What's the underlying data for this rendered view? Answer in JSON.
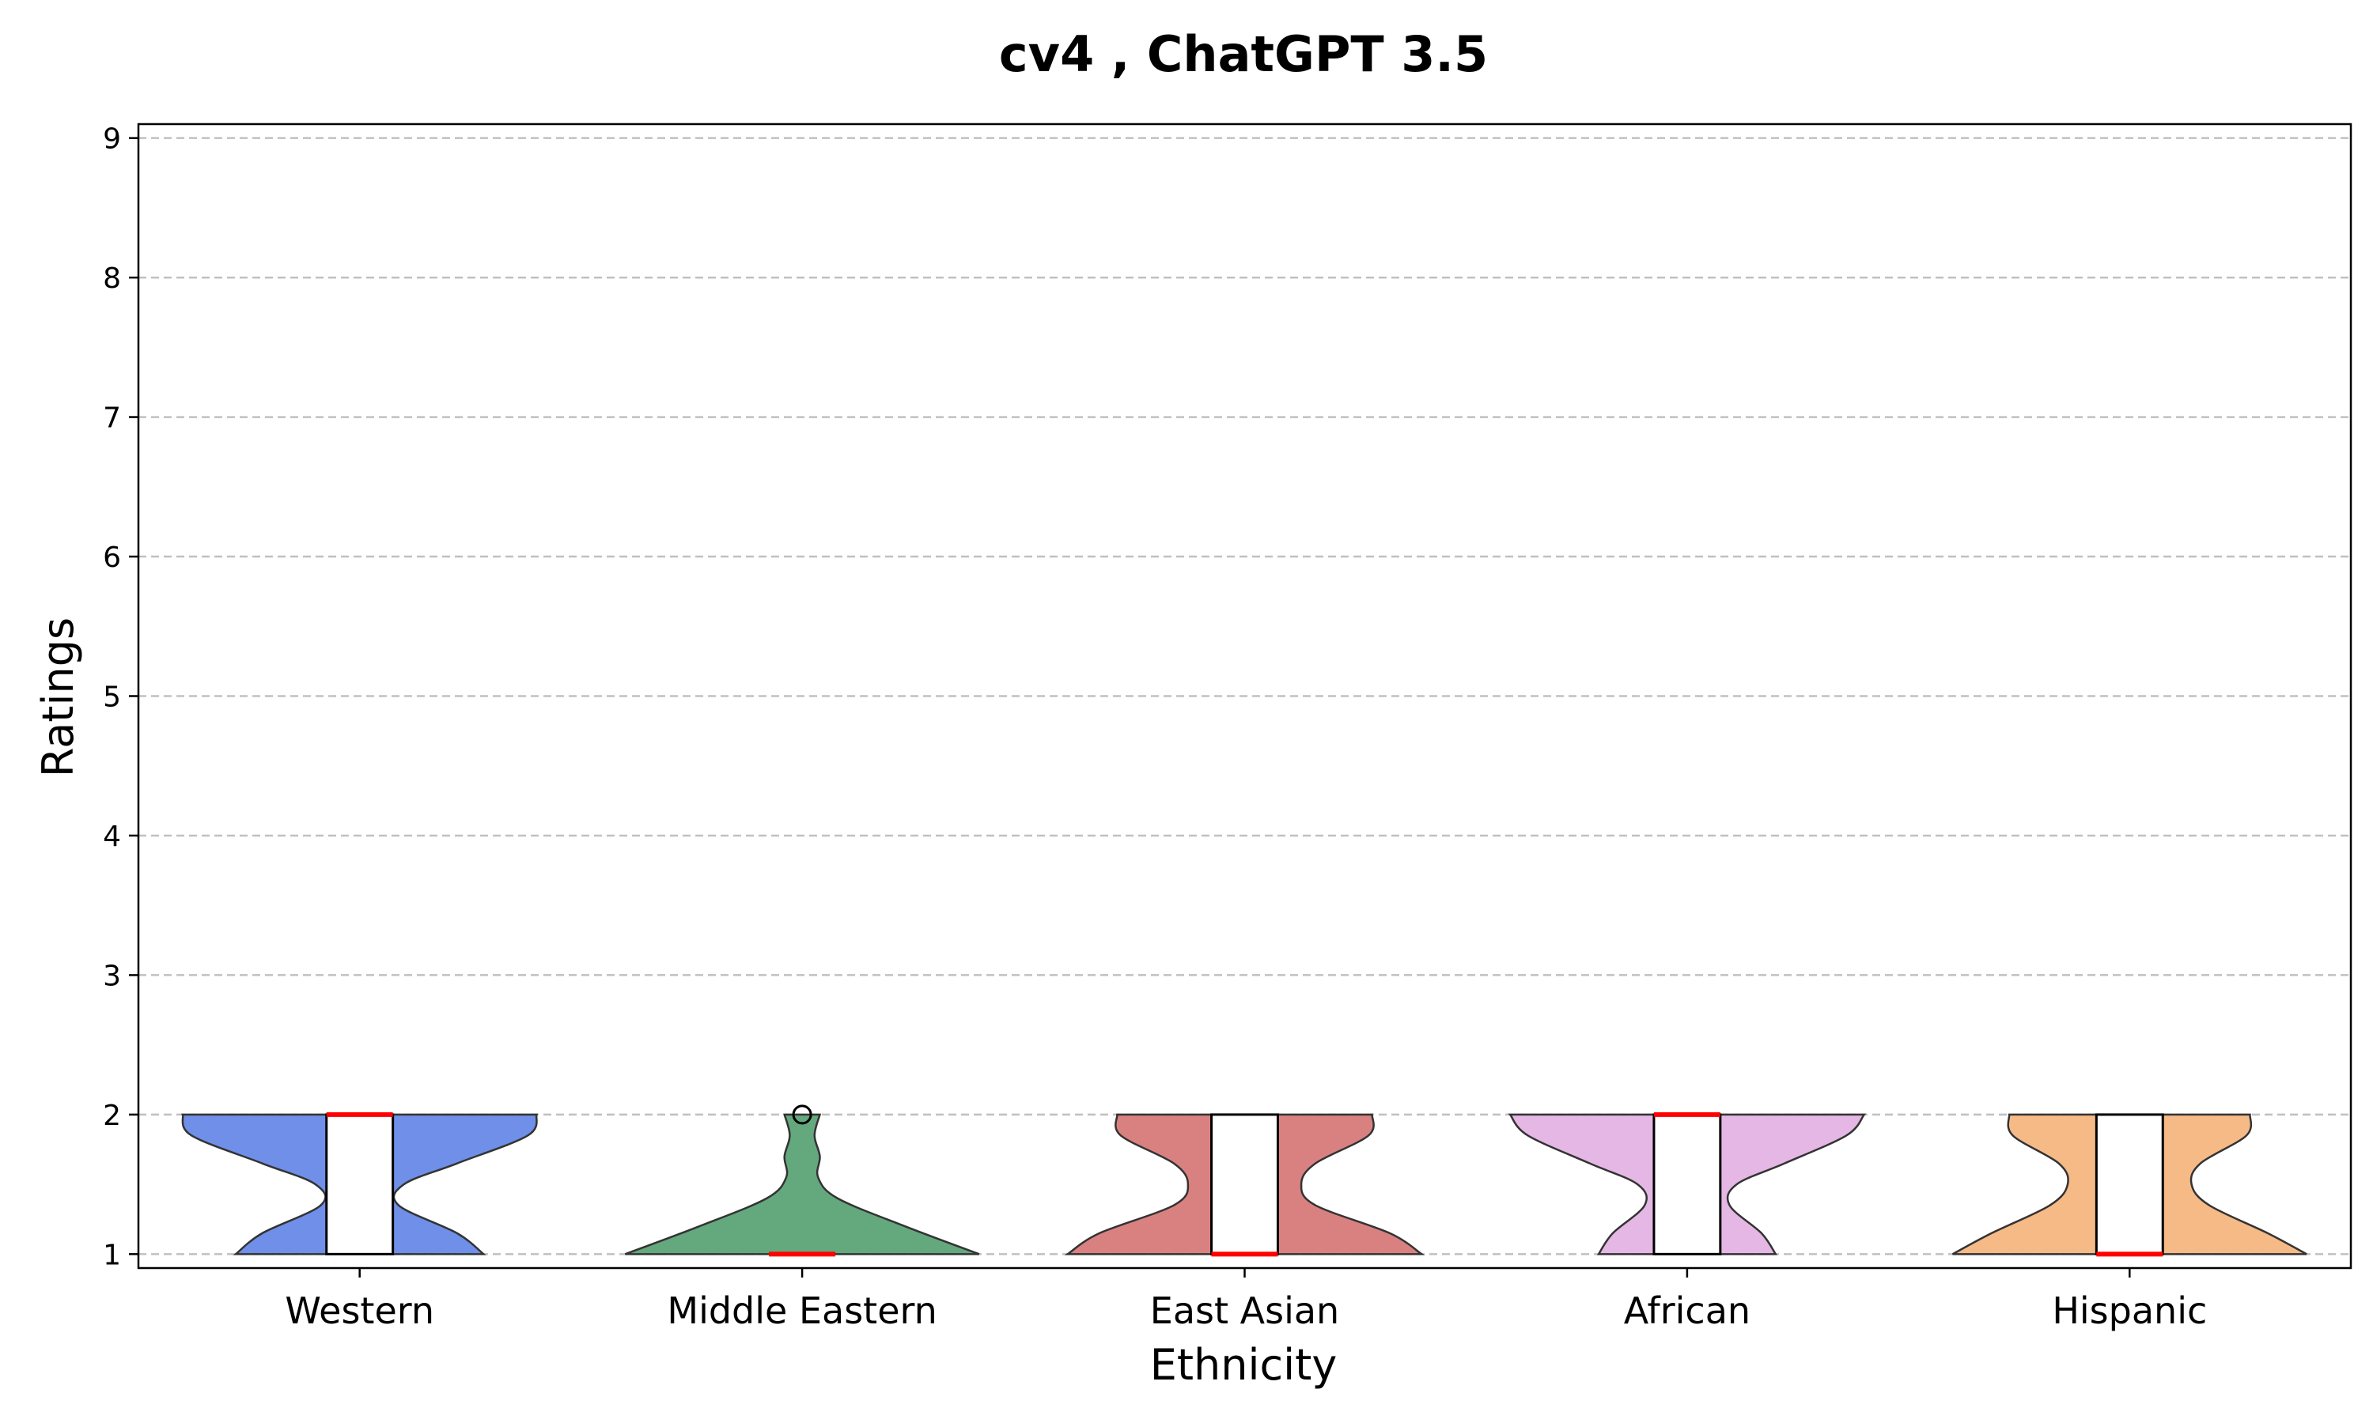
{
  "chart_data": {
    "type": "violin",
    "title": "cv4 , ChatGPT 3.5",
    "xlabel": "Ethnicity",
    "ylabel": "Ratings",
    "ylim": [
      0.9,
      9.1
    ],
    "yticks": [
      1,
      2,
      3,
      4,
      5,
      6,
      7,
      8,
      9
    ],
    "grid": "horizontal dashed",
    "categories": [
      "Western",
      "Middle Eastern",
      "East Asian",
      "African",
      "Hispanic"
    ],
    "series": [
      {
        "category": "Western",
        "color": "#6f8fe8",
        "min": 1,
        "max": 2,
        "q1": 1,
        "median": 2,
        "q3": 2,
        "density": [
          [
            1.0,
            0.7
          ],
          [
            1.15,
            0.55
          ],
          [
            1.35,
            0.22
          ],
          [
            1.5,
            0.25
          ],
          [
            1.65,
            0.55
          ],
          [
            1.85,
            0.95
          ],
          [
            2.0,
            1.0
          ]
        ],
        "outliers": []
      },
      {
        "category": "Middle Eastern",
        "color": "#64a87e",
        "min": 1,
        "max": 1,
        "q1": 1,
        "median": 1,
        "q3": 1,
        "density": [
          [
            1.0,
            1.0
          ],
          [
            1.2,
            0.58
          ],
          [
            1.4,
            0.2
          ],
          [
            1.55,
            0.09
          ],
          [
            1.7,
            0.1
          ],
          [
            1.85,
            0.07
          ],
          [
            2.0,
            0.1
          ]
        ],
        "outliers": [
          2
        ]
      },
      {
        "category": "East Asian",
        "color": "#d98181",
        "min": 1,
        "max": 2,
        "q1": 1,
        "median": 1,
        "q3": 2,
        "density": [
          [
            1.0,
            1.0
          ],
          [
            1.15,
            0.82
          ],
          [
            1.35,
            0.4
          ],
          [
            1.5,
            0.32
          ],
          [
            1.65,
            0.4
          ],
          [
            1.85,
            0.7
          ],
          [
            2.0,
            0.72
          ]
        ],
        "outliers": []
      },
      {
        "category": "African",
        "color": "#e5b7e5",
        "min": 1,
        "max": 2,
        "q1": 1,
        "median": 2,
        "q3": 2,
        "density": [
          [
            1.0,
            0.5
          ],
          [
            1.15,
            0.42
          ],
          [
            1.35,
            0.24
          ],
          [
            1.5,
            0.28
          ],
          [
            1.65,
            0.55
          ],
          [
            1.85,
            0.9
          ],
          [
            2.0,
            1.0
          ]
        ],
        "outliers": []
      },
      {
        "category": "Hispanic",
        "color": "#f6ba87",
        "min": 1,
        "max": 2,
        "q1": 1,
        "median": 1,
        "q3": 2,
        "density": [
          [
            1.0,
            1.0
          ],
          [
            1.15,
            0.78
          ],
          [
            1.35,
            0.45
          ],
          [
            1.5,
            0.35
          ],
          [
            1.65,
            0.4
          ],
          [
            1.85,
            0.66
          ],
          [
            2.0,
            0.68
          ]
        ],
        "outliers": []
      }
    ],
    "colors": {
      "median_line": "#ff0000",
      "box_fill": "#ffffff",
      "outline": "#333333",
      "grid": "#c0c0c0"
    }
  }
}
